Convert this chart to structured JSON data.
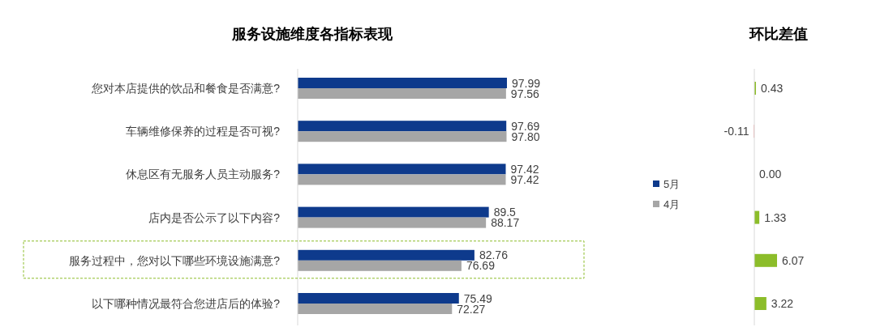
{
  "chart_data": [
    {
      "type": "bar",
      "orientation": "horizontal",
      "title": "服务设施维度各指标表现",
      "categories": [
        "您对本店提供的饮品和餐食是否满意?",
        "车辆维修保养的过程是否可视?",
        "休息区有无服务人员主动服务?",
        "店内是否公示了以下内容?",
        "服务过程中，您对以下哪些环境设施满意?",
        "以下哪种情况最符合您进店后的体验?"
      ],
      "series": [
        {
          "name": "5月",
          "color": "#0e3a8c",
          "values": [
            97.99,
            97.69,
            97.42,
            89.5,
            82.76,
            75.49
          ],
          "value_labels": [
            "97.99",
            "97.69",
            "97.42",
            "89.5",
            "82.76",
            "75.49"
          ]
        },
        {
          "name": "4月",
          "color": "#a6a6a6",
          "values": [
            97.56,
            97.8,
            97.42,
            88.17,
            76.69,
            72.27
          ],
          "value_labels": [
            "97.56",
            "97.80",
            "97.42",
            "88.17",
            "76.69",
            "72.27"
          ]
        }
      ],
      "legend": "right"
    },
    {
      "type": "bar",
      "orientation": "horizontal",
      "title": "环比差值",
      "categories": [
        null,
        null,
        null,
        null,
        null,
        null
      ],
      "values": [
        0.43,
        -0.11,
        0.0,
        1.33,
        6.07,
        3.22
      ],
      "colors": [
        "#8cbd2a",
        "#e05a5a",
        "#8cbd2a",
        "#8cbd2a",
        "#8cbd2a",
        "#8cbd2a"
      ],
      "value_labels": [
        "0.43",
        "-0.11",
        "0.00",
        "1.33",
        "6.07",
        "3.22"
      ]
    }
  ]
}
